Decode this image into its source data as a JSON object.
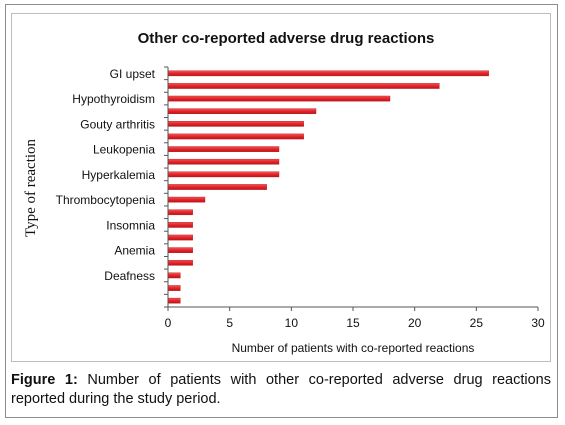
{
  "chart_data": {
    "type": "bar",
    "orientation": "horizontal",
    "title": "Other co-reported adverse drug reactions",
    "xlabel": "Number of patients with co-reported reactions",
    "ylabel": "Type of reaction",
    "xlim": [
      0,
      30
    ],
    "xticks": [
      0,
      5,
      10,
      15,
      20,
      25,
      30
    ],
    "grid": false,
    "legend": "none",
    "bar_color": "#e8262b",
    "bar_count": 19,
    "category_labels": [
      {
        "label": "GI upset",
        "bar_index": 0
      },
      {
        "label": "Hypothyroidism",
        "bar_index": 2
      },
      {
        "label": "Gouty arthritis",
        "bar_index": 4
      },
      {
        "label": "Leukopenia",
        "bar_index": 6
      },
      {
        "label": "Hyperkalemia",
        "bar_index": 8
      },
      {
        "label": "Thrombocytopenia",
        "bar_index": 10
      },
      {
        "label": "Insomnia",
        "bar_index": 12
      },
      {
        "label": "Anemia",
        "bar_index": 14
      },
      {
        "label": "Deafness",
        "bar_index": 16
      }
    ],
    "values": [
      26,
      22,
      18,
      12,
      11,
      11,
      9,
      9,
      9,
      8,
      3,
      2,
      2,
      2,
      2,
      2,
      1,
      1,
      1
    ]
  },
  "caption": {
    "label": "Figure 1:",
    "text": " Number of patients with other co-reported adverse drug reactions reported during the study period."
  }
}
